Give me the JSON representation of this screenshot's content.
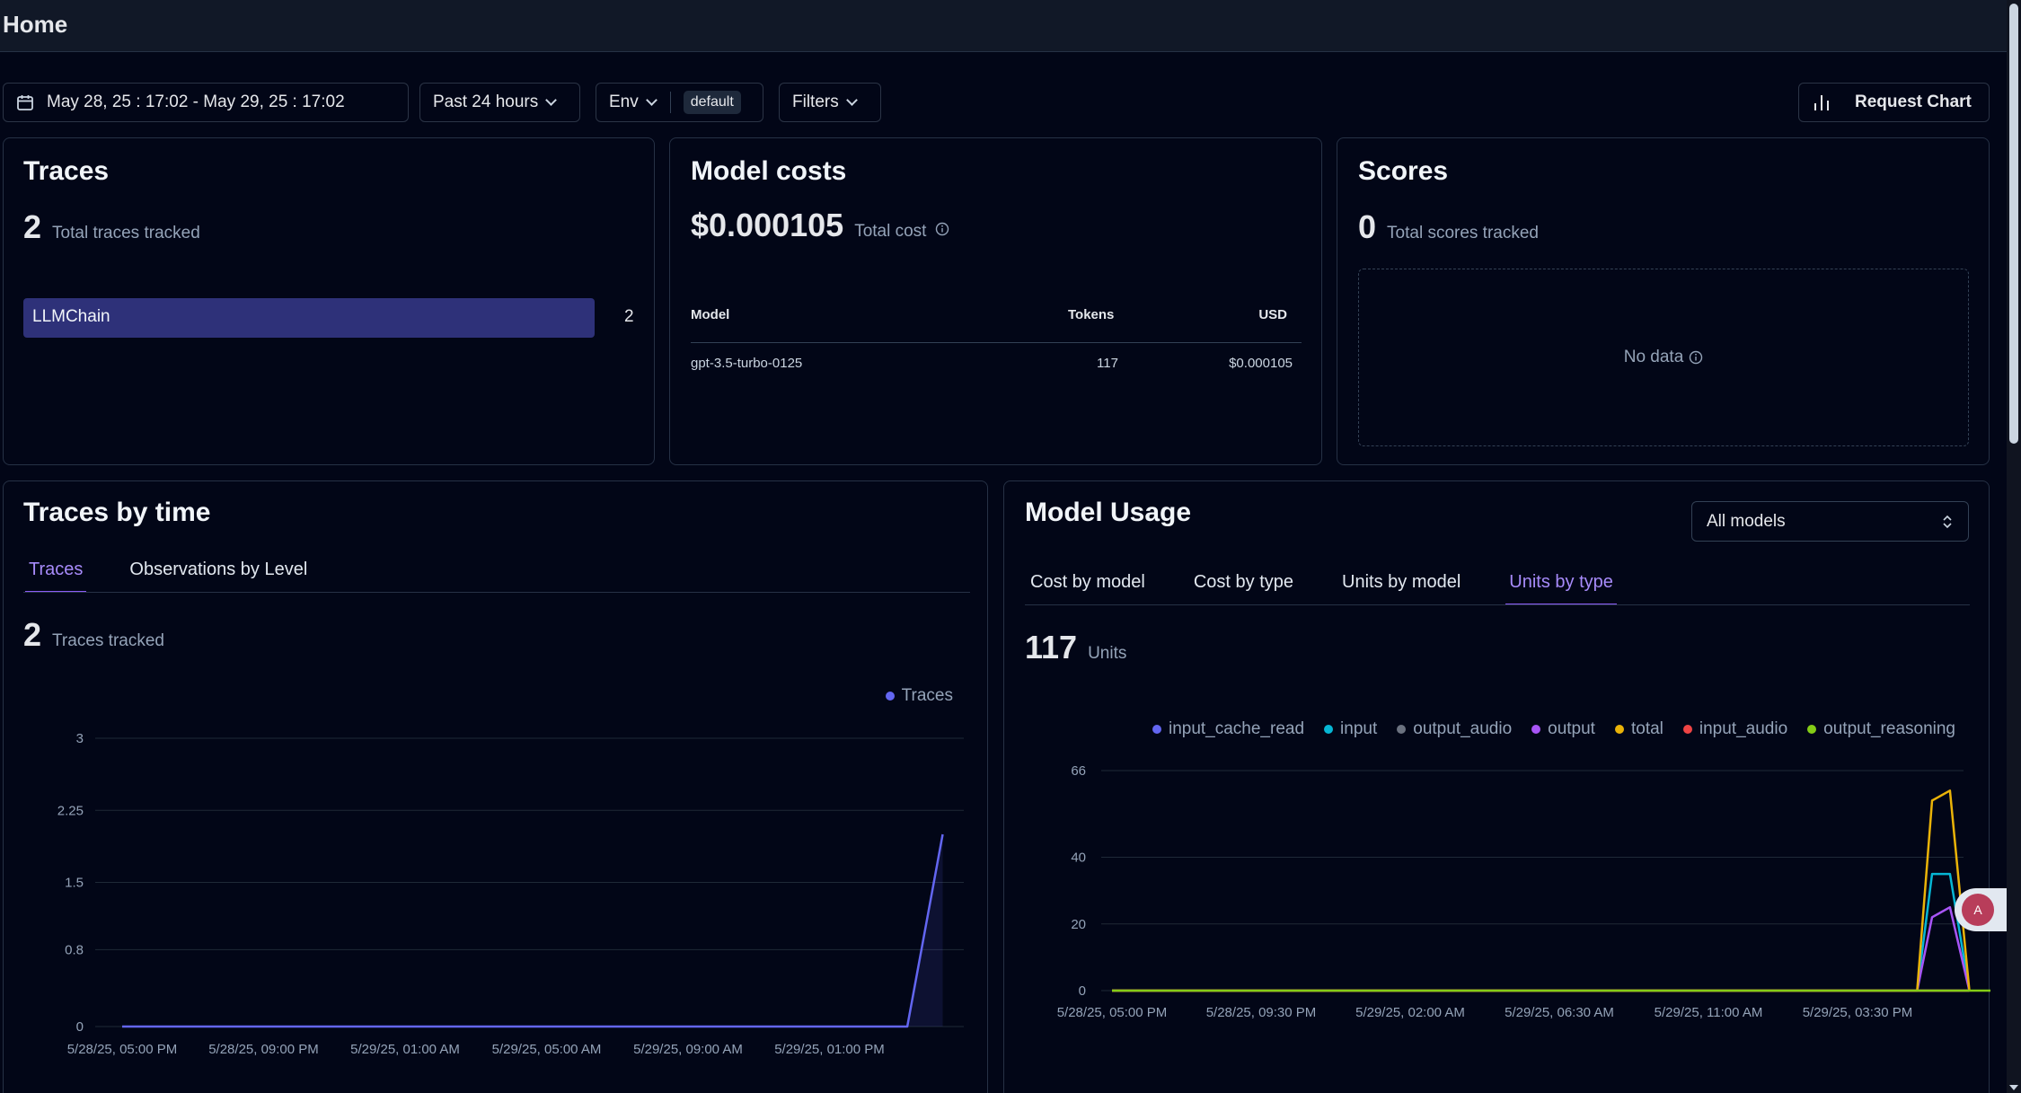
{
  "header": {
    "title": "Home"
  },
  "toolbar": {
    "date_range": "May 28, 25 : 17:02 - May 29, 25 : 17:02",
    "preset": "Past 24 hours",
    "env_label": "Env",
    "env_badge": "default",
    "filters_label": "Filters",
    "request_chart_label": "Request Chart"
  },
  "traces_card": {
    "title": "Traces",
    "total": "2",
    "total_label": "Total traces tracked",
    "bars": [
      {
        "name": "LLMChain",
        "value": "2",
        "fraction": 1.0
      }
    ]
  },
  "costs_card": {
    "title": "Model costs",
    "total": "$0.000105",
    "total_label": "Total cost",
    "columns": [
      "Model",
      "Tokens",
      "USD"
    ],
    "rows": [
      [
        "gpt-3.5-turbo-0125",
        "117",
        "$0.000105"
      ]
    ]
  },
  "scores_card": {
    "title": "Scores",
    "total": "0",
    "total_label": "Total scores tracked",
    "empty_text": "No data"
  },
  "traces_time_card": {
    "title": "Traces by time",
    "tabs": [
      "Traces",
      "Observations by Level"
    ],
    "active_tab": 0,
    "total": "2",
    "total_label": "Traces tracked"
  },
  "usage_card": {
    "title": "Model Usage",
    "select_value": "All models",
    "tabs": [
      "Cost by model",
      "Cost by type",
      "Units by model",
      "Units by type"
    ],
    "active_tab": 3,
    "total": "117",
    "total_label": "Units"
  },
  "chart_data": [
    {
      "type": "area",
      "ylim": [
        0,
        3
      ],
      "y_ticks": [
        "0",
        "0.8",
        "1.5",
        "2.25",
        "3"
      ],
      "x_tick_labels": [
        "5/28/25, 05:00 PM",
        "5/28/25, 09:00 PM",
        "5/29/25, 01:00 AM",
        "5/29/25, 05:00 AM",
        "5/29/25, 09:00 AM",
        "5/29/25, 01:00 PM"
      ],
      "series": [
        {
          "name": "Traces",
          "color": "#6366f1",
          "points": [
            [
              0,
              0
            ],
            [
              1,
              0
            ],
            [
              2,
              0
            ],
            [
              3,
              0
            ],
            [
              4,
              0
            ],
            [
              5,
              0
            ],
            [
              5.55,
              0
            ],
            [
              5.8,
              2
            ]
          ]
        }
      ]
    },
    {
      "type": "line",
      "ylim": [
        0,
        66
      ],
      "y_ticks": [
        "0",
        "20",
        "40",
        "66"
      ],
      "x_tick_labels": [
        "5/28/25, 05:00 PM",
        "5/28/25, 09:30 PM",
        "5/29/25, 02:00 AM",
        "5/29/25, 06:30 AM",
        "5/29/25, 11:00 AM",
        "5/29/25, 03:30 PM"
      ],
      "series": [
        {
          "name": "input_cache_read",
          "color": "#6366f1",
          "points": [
            [
              0,
              0
            ],
            [
              5.4,
              0
            ],
            [
              5.75,
              0
            ]
          ]
        },
        {
          "name": "input",
          "color": "#06b6d4",
          "points": [
            [
              0,
              0
            ],
            [
              5.4,
              0
            ],
            [
              5.5,
              35
            ],
            [
              5.62,
              35
            ],
            [
              5.75,
              0
            ]
          ]
        },
        {
          "name": "output_audio",
          "color": "#6b7280",
          "points": [
            [
              0,
              0
            ],
            [
              5.4,
              0
            ],
            [
              5.75,
              0
            ]
          ]
        },
        {
          "name": "output",
          "color": "#a855f7",
          "points": [
            [
              0,
              0
            ],
            [
              5.4,
              0
            ],
            [
              5.5,
              22
            ],
            [
              5.62,
              25
            ],
            [
              5.75,
              0
            ]
          ]
        },
        {
          "name": "total",
          "color": "#eab308",
          "points": [
            [
              0,
              0
            ],
            [
              5.4,
              0
            ],
            [
              5.5,
              57
            ],
            [
              5.62,
              60
            ],
            [
              5.75,
              0
            ]
          ]
        },
        {
          "name": "input_audio",
          "color": "#ef4444",
          "points": [
            [
              0,
              0
            ],
            [
              5.4,
              0
            ],
            [
              5.75,
              0
            ]
          ]
        },
        {
          "name": "output_reasoning",
          "color": "#84cc16",
          "points": [
            [
              0,
              0
            ],
            [
              5.97,
              0
            ]
          ]
        }
      ]
    }
  ]
}
